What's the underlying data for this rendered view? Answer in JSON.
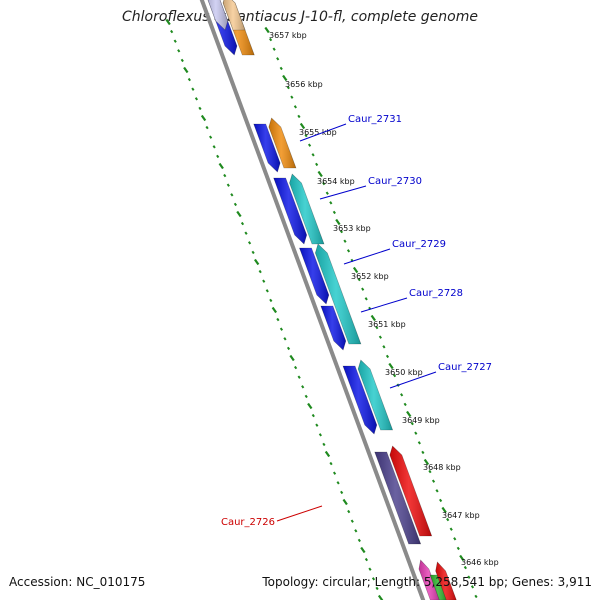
{
  "title": "Chloroflexus aurantiacus J-10-fl, complete genome",
  "footer": {
    "accession": "Accession: NC_010175",
    "topology": "Topology: circular; Length: 5,258,541 bp; Genes: 3,911"
  },
  "colors": {
    "backbone": "#8a8a8a",
    "tick": "#1f8a1f",
    "label_blue": "#0000cc",
    "label_red": "#cc0000"
  },
  "kbp_markers": [
    "3657 kbp",
    "3656 kbp",
    "3655 kbp",
    "3654 kbp",
    "3653 kbp",
    "3652 kbp",
    "3651 kbp",
    "3650 kbp",
    "3649 kbp",
    "3648 kbp",
    "3647 kbp",
    "3646 kbp"
  ],
  "loci": [
    {
      "name": "Caur_2731",
      "color": "#0000cc"
    },
    {
      "name": "Caur_2730",
      "color": "#0000cc"
    },
    {
      "name": "Caur_2729",
      "color": "#0000cc"
    },
    {
      "name": "Caur_2728",
      "color": "#0000cc"
    },
    {
      "name": "Caur_2727",
      "color": "#0000cc"
    },
    {
      "name": "Caur_2726",
      "color": "#cc0000"
    }
  ],
  "gene_colors": {
    "blue": "#0a14e6",
    "orange": "#f08a0a",
    "cyan": "#1fc8c8",
    "navy": "#4a3f8c",
    "red": "#ee0a0a",
    "lavender": "#c8c8f0",
    "light_orange": "#f5c890",
    "magenta": "#e63cb4",
    "green": "#2ab42a"
  }
}
